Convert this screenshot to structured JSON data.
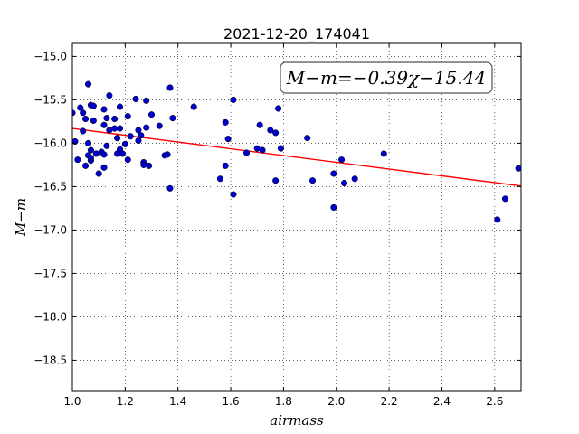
{
  "chart_data": {
    "type": "scatter",
    "title": "2021-12-20_174041",
    "xlabel": "airmass",
    "ylabel": "M−m",
    "xlim": [
      1.0,
      2.7
    ],
    "ylim": [
      -18.85,
      -14.85
    ],
    "xticks": [
      1.0,
      1.2,
      1.4,
      1.6,
      1.8,
      2.0,
      2.2,
      2.4,
      2.6
    ],
    "yticks": [
      -15.0,
      -15.5,
      -16.0,
      -16.5,
      -17.0,
      -17.5,
      -18.0,
      -18.5
    ],
    "xtick_labels": [
      "1.0",
      "1.2",
      "1.4",
      "1.6",
      "1.8",
      "2.0",
      "2.2",
      "2.4",
      "2.6"
    ],
    "ytick_labels": [
      "−15.0",
      "−15.5",
      "−16.0",
      "−16.5",
      "−17.0",
      "−17.5",
      "−18.0",
      "−18.5"
    ],
    "grid": true,
    "annotation": "M−m=−0.39χ−15.44",
    "fit": {
      "slope": -0.39,
      "intercept": -15.44,
      "color": "#ff0000"
    },
    "marker_color": "#0000cc",
    "points": [
      [
        1.0,
        -15.65
      ],
      [
        1.01,
        -15.98
      ],
      [
        1.02,
        -16.19
      ],
      [
        1.03,
        -15.59
      ],
      [
        1.04,
        -15.65
      ],
      [
        1.04,
        -15.86
      ],
      [
        1.05,
        -16.26
      ],
      [
        1.05,
        -15.72
      ],
      [
        1.06,
        -15.32
      ],
      [
        1.06,
        -16.0
      ],
      [
        1.06,
        -16.14
      ],
      [
        1.07,
        -15.56
      ],
      [
        1.07,
        -16.08
      ],
      [
        1.07,
        -16.2
      ],
      [
        1.07,
        -16.17
      ],
      [
        1.08,
        -15.57
      ],
      [
        1.08,
        -15.74
      ],
      [
        1.09,
        -16.12
      ],
      [
        1.1,
        -16.35
      ],
      [
        1.11,
        -16.1
      ],
      [
        1.12,
        -15.61
      ],
      [
        1.12,
        -15.79
      ],
      [
        1.12,
        -16.13
      ],
      [
        1.12,
        -16.28
      ],
      [
        1.13,
        -16.03
      ],
      [
        1.13,
        -15.71
      ],
      [
        1.14,
        -15.85
      ],
      [
        1.14,
        -15.45
      ],
      [
        1.16,
        -15.72
      ],
      [
        1.16,
        -15.83
      ],
      [
        1.17,
        -15.94
      ],
      [
        1.17,
        -16.12
      ],
      [
        1.18,
        -15.58
      ],
      [
        1.18,
        -15.83
      ],
      [
        1.18,
        -16.07
      ],
      [
        1.19,
        -16.12
      ],
      [
        1.2,
        -16.01
      ],
      [
        1.21,
        -16.19
      ],
      [
        1.21,
        -15.69
      ],
      [
        1.22,
        -15.92
      ],
      [
        1.24,
        -15.49
      ],
      [
        1.25,
        -15.97
      ],
      [
        1.25,
        -15.85
      ],
      [
        1.26,
        -15.91
      ],
      [
        1.27,
        -16.22
      ],
      [
        1.27,
        -16.25
      ],
      [
        1.28,
        -15.82
      ],
      [
        1.28,
        -15.51
      ],
      [
        1.29,
        -16.26
      ],
      [
        1.3,
        -15.67
      ],
      [
        1.33,
        -15.8
      ],
      [
        1.35,
        -16.14
      ],
      [
        1.36,
        -16.13
      ],
      [
        1.37,
        -16.52
      ],
      [
        1.37,
        -15.36
      ],
      [
        1.38,
        -15.71
      ],
      [
        1.46,
        -15.58
      ],
      [
        1.56,
        -16.41
      ],
      [
        1.58,
        -15.76
      ],
      [
        1.58,
        -16.26
      ],
      [
        1.59,
        -15.95
      ],
      [
        1.61,
        -15.5
      ],
      [
        1.61,
        -16.59
      ],
      [
        1.66,
        -16.11
      ],
      [
        1.7,
        -16.06
      ],
      [
        1.71,
        -15.79
      ],
      [
        1.72,
        -16.08
      ],
      [
        1.75,
        -15.85
      ],
      [
        1.77,
        -15.88
      ],
      [
        1.77,
        -16.43
      ],
      [
        1.78,
        -15.6
      ],
      [
        1.79,
        -16.06
      ],
      [
        1.89,
        -15.94
      ],
      [
        1.91,
        -16.43
      ],
      [
        1.99,
        -16.35
      ],
      [
        1.99,
        -16.74
      ],
      [
        2.02,
        -16.19
      ],
      [
        2.03,
        -16.46
      ],
      [
        2.07,
        -16.41
      ],
      [
        2.18,
        -16.12
      ],
      [
        2.61,
        -16.88
      ],
      [
        2.64,
        -16.64
      ],
      [
        2.69,
        -16.29
      ]
    ]
  }
}
